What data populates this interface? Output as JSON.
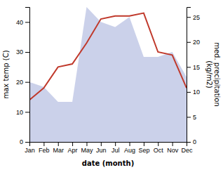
{
  "chart_data": {
    "type": "line",
    "categories": [
      "Jan",
      "Feb",
      "Mar",
      "Apr",
      "May",
      "Jun",
      "Jul",
      "Aug",
      "Sep",
      "Oct",
      "Nov",
      "Dec"
    ],
    "series": [
      {
        "type": "area",
        "axis": "y2",
        "color": "#c5cce8",
        "values": [
          12,
          11,
          8,
          8,
          27,
          24,
          23,
          25,
          17,
          17,
          18,
          13
        ]
      },
      {
        "type": "line",
        "color": "#c0392b",
        "values": [
          14,
          18,
          25,
          26,
          33,
          41,
          42,
          42,
          43,
          30,
          29,
          18
        ]
      }
    ],
    "xlabel": "date (month)",
    "ylabel": "max temp (C)",
    "y2label": "med. precipitation\n(kg/m2)",
    "ylim": [
      0,
      45
    ],
    "yticks": [
      0,
      10,
      20,
      30,
      40
    ],
    "y2lim": [
      0,
      27
    ],
    "y2ticks": [
      0,
      5,
      10,
      15,
      20,
      25
    ],
    "grid": false
  }
}
